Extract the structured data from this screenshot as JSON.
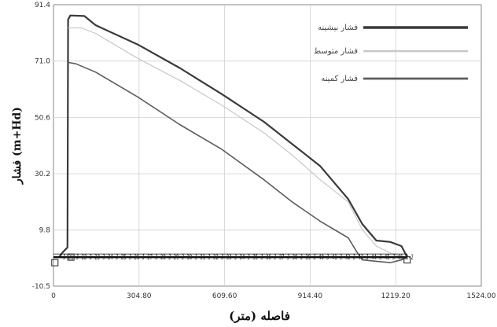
{
  "chart_data": {
    "type": "line",
    "title": "",
    "xlabel": "فاصله (متر)",
    "ylabel": "فشار (m+Hd)",
    "xlim": [
      0,
      1524
    ],
    "ylim": [
      -10.5,
      91.4
    ],
    "x_ticks": [
      "0",
      "304.80",
      "609.60",
      "914.40",
      "1219.20",
      "1524.00"
    ],
    "x_tick_values": [
      0,
      304.8,
      609.6,
      914.4,
      1219.2,
      1524.0
    ],
    "y_ticks": [
      "-10.5",
      "9.8",
      "30.2",
      "50.6",
      "71.0",
      "91.4"
    ],
    "y_tick_values": [
      -10.5,
      9.8,
      30.2,
      50.6,
      71.0,
      91.4
    ],
    "grid": true,
    "legend_position": "top-right",
    "pipe_label_text": "J-21 J-22 J-23 J-24 J-25 J-26 J-27 J-28 J-29 J-30 J-31 J-32 J-33 J-34 J-35 J-36 J-37 J-38 J-39 J-40 J-41 J-42 J-43 J-44 J-45 J-46 R-2",
    "series": [
      {
        "name": "فشار بیشینه",
        "color": "#3a3a3a",
        "width": 2.2,
        "points": [
          [
            0,
            0
          ],
          [
            20,
            0
          ],
          [
            35,
            2
          ],
          [
            50,
            3.5
          ],
          [
            52,
            86
          ],
          [
            60,
            87.5
          ],
          [
            110,
            87.3
          ],
          [
            150,
            84
          ],
          [
            300,
            77
          ],
          [
            450,
            68.5
          ],
          [
            600,
            59
          ],
          [
            750,
            49
          ],
          [
            850,
            41
          ],
          [
            950,
            33
          ],
          [
            1000,
            27
          ],
          [
            1050,
            21
          ],
          [
            1100,
            12
          ],
          [
            1150,
            6
          ],
          [
            1200,
            5.5
          ],
          [
            1240,
            4
          ],
          [
            1260,
            0
          ]
        ]
      },
      {
        "name": "فشار متوسط",
        "color": "#c8c8c8",
        "width": 1.2,
        "points": [
          [
            52,
            83
          ],
          [
            100,
            83
          ],
          [
            150,
            81
          ],
          [
            300,
            72
          ],
          [
            450,
            64
          ],
          [
            600,
            55
          ],
          [
            750,
            45
          ],
          [
            850,
            37
          ],
          [
            950,
            28
          ],
          [
            1050,
            20
          ],
          [
            1100,
            10
          ],
          [
            1150,
            4
          ],
          [
            1200,
            1.5
          ],
          [
            1240,
            0
          ],
          [
            1260,
            -1
          ]
        ]
      },
      {
        "name": "فشار کمینه",
        "color": "#5c5c5c",
        "width": 1.6,
        "points": [
          [
            52,
            70.5
          ],
          [
            80,
            70
          ],
          [
            150,
            67
          ],
          [
            300,
            58
          ],
          [
            450,
            48
          ],
          [
            600,
            39
          ],
          [
            750,
            28
          ],
          [
            850,
            20
          ],
          [
            950,
            13
          ],
          [
            1050,
            7
          ],
          [
            1080,
            2
          ],
          [
            1100,
            -1
          ],
          [
            1150,
            -1.5
          ],
          [
            1200,
            -2
          ],
          [
            1240,
            -1
          ],
          [
            1260,
            0
          ]
        ]
      }
    ],
    "pipe_line": {
      "color": "#111111",
      "points": [
        [
          0,
          0
        ],
        [
          1260,
          0
        ]
      ],
      "node_markers": [
        [
          5,
          -2
        ],
        [
          62,
          0
        ],
        [
          1260,
          -1
        ]
      ]
    }
  }
}
